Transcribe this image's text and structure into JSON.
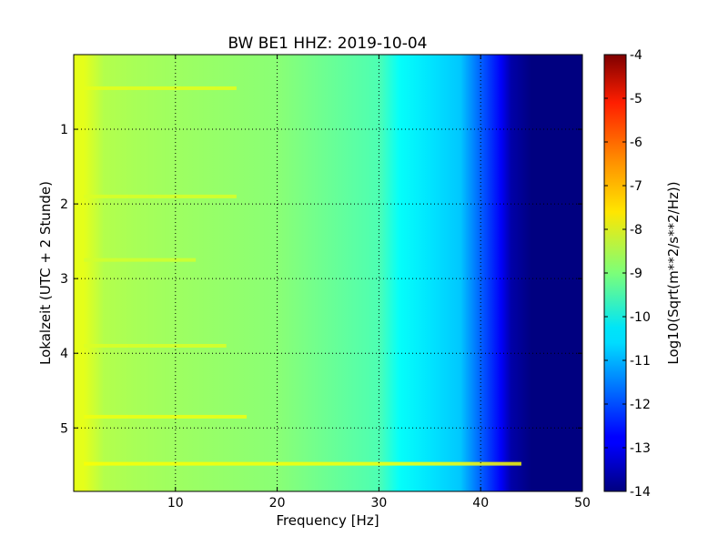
{
  "chart_data": {
    "type": "heatmap",
    "title": "BW BE1 HHZ: 2019-10-04",
    "xlabel": "Frequency [Hz]",
    "ylabel": "Lokalzeit (UTC + 2 Stunde)",
    "xlim": [
      0,
      50
    ],
    "ylim": [
      5.85,
      0
    ],
    "x_ticks": [
      10,
      20,
      30,
      40,
      50
    ],
    "y_ticks": [
      1,
      2,
      3,
      4,
      5
    ],
    "grid": true,
    "colormap": "jet",
    "colorbar": {
      "label": "Log10(Sqrt(m**2/s**2/Hz))",
      "range": [
        -14,
        -4
      ],
      "ticks": [
        -4,
        -5,
        -6,
        -7,
        -8,
        -9,
        -10,
        -11,
        -12,
        -13,
        -14
      ]
    },
    "frequency_profile": {
      "frequency_hz": [
        0.3,
        1,
        3,
        6,
        10,
        15,
        20,
        25,
        30,
        32,
        35,
        38,
        40,
        42,
        43,
        45,
        50
      ],
      "log10_amplitude": [
        -8.0,
        -8.0,
        -8.5,
        -8.6,
        -8.7,
        -8.8,
        -8.9,
        -9.2,
        -9.5,
        -10.2,
        -10.5,
        -10.8,
        -11.8,
        -12.8,
        -13.6,
        -14.0,
        -14.0
      ]
    },
    "notable_bands": [
      {
        "hour": 0.45,
        "fmin": 1,
        "fmax": 16,
        "log10_amplitude": -8.0
      },
      {
        "hour": 1.9,
        "fmin": 1,
        "fmax": 16,
        "log10_amplitude": -8.1
      },
      {
        "hour": 2.75,
        "fmin": 1,
        "fmax": 12,
        "log10_amplitude": -8.2
      },
      {
        "hour": 3.9,
        "fmin": 1,
        "fmax": 15,
        "log10_amplitude": -8.1
      },
      {
        "hour": 4.85,
        "fmin": 1,
        "fmax": 17,
        "log10_amplitude": -7.9
      },
      {
        "hour": 5.48,
        "fmin": 1,
        "fmax": 44,
        "log10_amplitude": -7.8
      }
    ]
  }
}
